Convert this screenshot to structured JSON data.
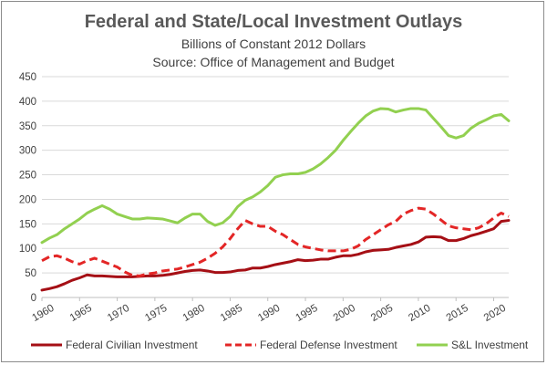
{
  "chart_data": {
    "type": "line",
    "title": "Federal and State/Local Investment Outlays",
    "subtitle": "Billions of Constant 2012 Dollars",
    "source": "Source:  Office of Management and Budget",
    "xlabel": "",
    "ylabel": "",
    "xlim": [
      1960,
      2022
    ],
    "ylim": [
      0,
      450
    ],
    "x_ticks": [
      1960,
      1965,
      1970,
      1975,
      1980,
      1985,
      1990,
      1995,
      2000,
      2005,
      2010,
      2015,
      2020
    ],
    "y_ticks": [
      0,
      50,
      100,
      150,
      200,
      250,
      300,
      350,
      400,
      450
    ],
    "grid": true,
    "legend_position": "bottom",
    "x": [
      1960,
      1961,
      1962,
      1963,
      1964,
      1965,
      1966,
      1967,
      1968,
      1969,
      1970,
      1971,
      1972,
      1973,
      1974,
      1975,
      1976,
      1977,
      1978,
      1979,
      1980,
      1981,
      1982,
      1983,
      1984,
      1985,
      1986,
      1987,
      1988,
      1989,
      1990,
      1991,
      1992,
      1993,
      1994,
      1995,
      1996,
      1997,
      1998,
      1999,
      2000,
      2001,
      2002,
      2003,
      2004,
      2005,
      2006,
      2007,
      2008,
      2009,
      2010,
      2011,
      2012,
      2013,
      2014,
      2015,
      2016,
      2017,
      2018,
      2019,
      2020,
      2021,
      2022
    ],
    "series": [
      {
        "name": "Federal Civilian Investment",
        "color": "#a50f15",
        "dash": "solid",
        "values": [
          15,
          18,
          22,
          28,
          35,
          40,
          46,
          44,
          44,
          43,
          42,
          42,
          42,
          43,
          44,
          44,
          45,
          47,
          50,
          53,
          55,
          56,
          54,
          51,
          51,
          52,
          55,
          56,
          60,
          60,
          63,
          67,
          70,
          73,
          77,
          75,
          76,
          78,
          78,
          82,
          85,
          85,
          88,
          93,
          96,
          97,
          98,
          102,
          105,
          108,
          113,
          123,
          124,
          123,
          116,
          116,
          120,
          126,
          130,
          135,
          140,
          155,
          157
        ]
      },
      {
        "name": "Federal Defense Investment",
        "color": "#e32626",
        "dash": "dashed",
        "values": [
          75,
          83,
          85,
          80,
          73,
          68,
          75,
          80,
          74,
          68,
          62,
          52,
          45,
          44,
          48,
          50,
          54,
          56,
          58,
          62,
          67,
          72,
          80,
          90,
          103,
          120,
          140,
          157,
          150,
          145,
          145,
          135,
          128,
          118,
          108,
          103,
          100,
          97,
          95,
          95,
          95,
          98,
          105,
          118,
          128,
          138,
          148,
          155,
          170,
          177,
          182,
          180,
          170,
          158,
          146,
          142,
          140,
          138,
          142,
          150,
          162,
          172,
          165
        ]
      },
      {
        "name": "S&L Investment",
        "color": "#92d050",
        "dash": "solid",
        "values": [
          112,
          121,
          128,
          140,
          150,
          160,
          172,
          180,
          187,
          180,
          170,
          165,
          160,
          160,
          162,
          161,
          160,
          156,
          152,
          162,
          170,
          170,
          155,
          147,
          152,
          165,
          185,
          198,
          205,
          215,
          228,
          245,
          250,
          252,
          252,
          255,
          262,
          272,
          285,
          300,
          320,
          338,
          355,
          370,
          380,
          385,
          384,
          378,
          382,
          385,
          385,
          382,
          365,
          348,
          330,
          325,
          330,
          345,
          355,
          362,
          370,
          373,
          360
        ]
      }
    ]
  }
}
